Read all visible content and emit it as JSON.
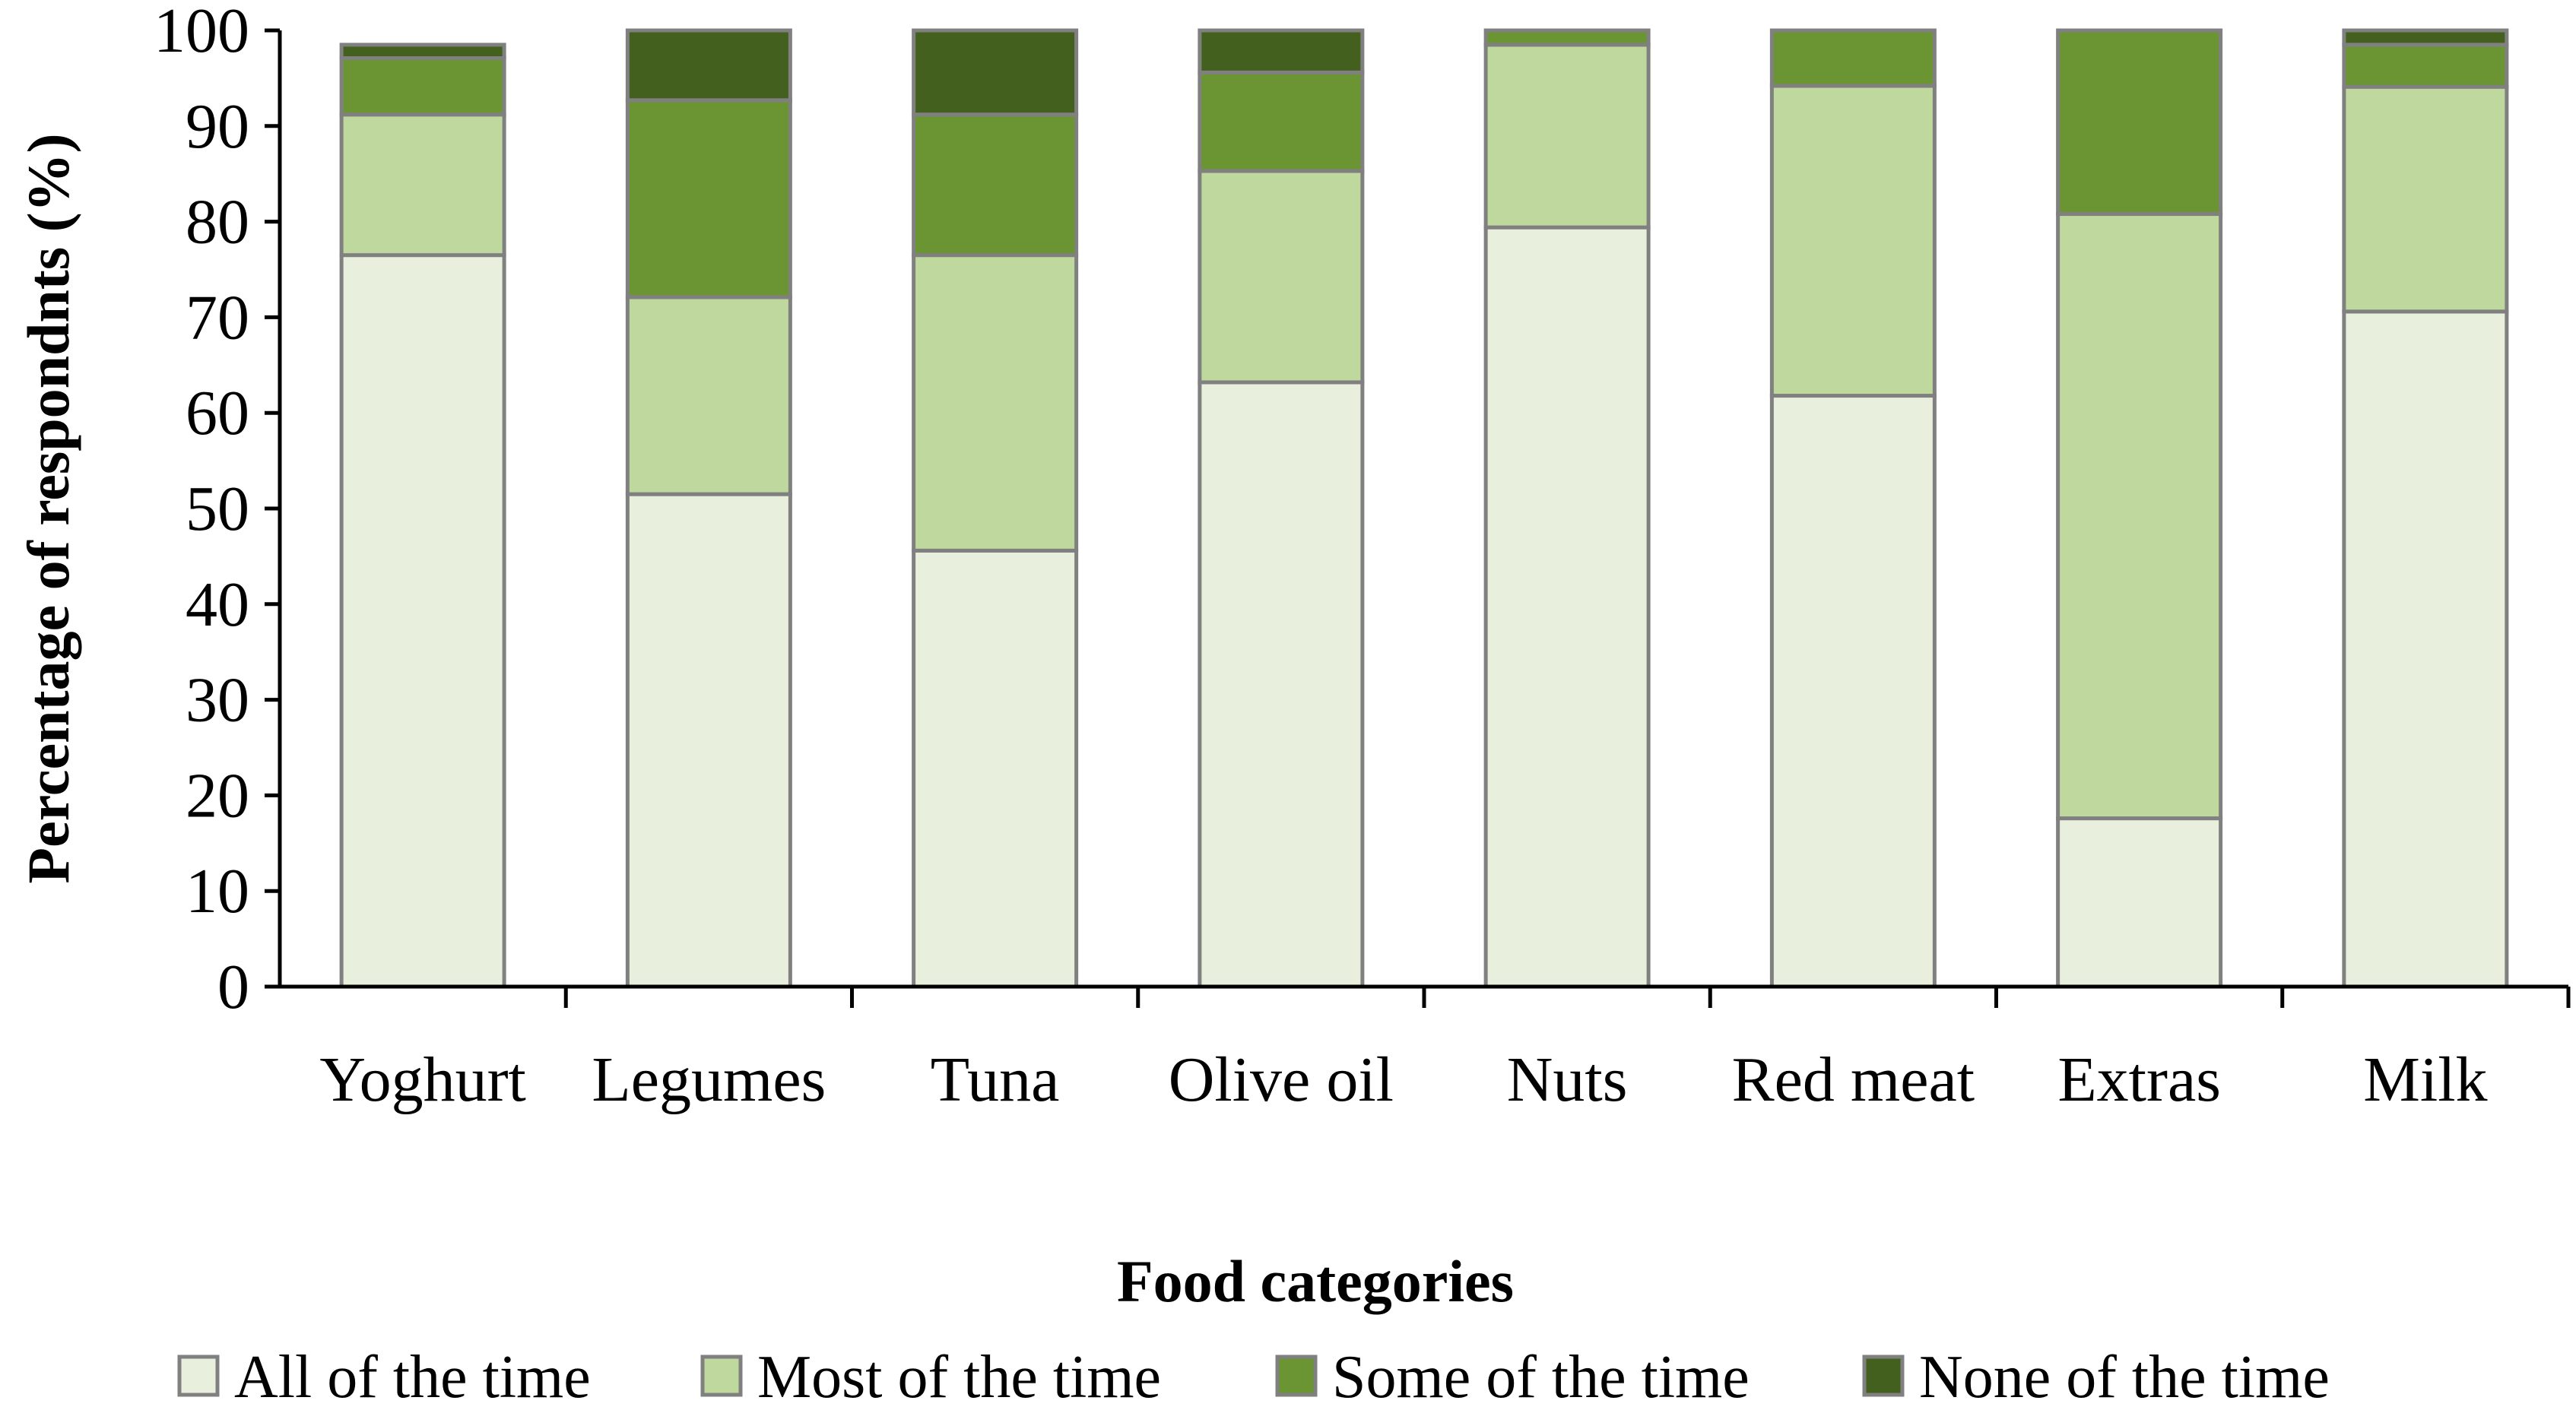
{
  "chart_data": {
    "type": "bar",
    "stacked": true,
    "title": "",
    "xlabel": "Food categories",
    "ylabel": "Percentage of respondnts (%)",
    "ylim": [
      0,
      100
    ],
    "yticks": [
      0,
      10,
      20,
      30,
      40,
      50,
      60,
      70,
      80,
      90,
      100
    ],
    "grid": false,
    "legend_position": "bottom",
    "categories": [
      "Yoghurt",
      "Legumes",
      "Tuna",
      "Olive oil",
      "Nuts",
      "Red meat",
      "Extras",
      "Milk"
    ],
    "series": [
      {
        "name": "All of the time",
        "color": "#e8efdc",
        "values": [
          76.5,
          51.5,
          45.6,
          63.2,
          79.4,
          61.8,
          17.6,
          70.6
        ]
      },
      {
        "name": "Most of the time",
        "color": "#bfd89e",
        "values": [
          14.7,
          20.6,
          30.9,
          22.1,
          19.1,
          32.4,
          63.2,
          23.5
        ]
      },
      {
        "name": "Some of the time",
        "color": "#6a9532",
        "values": [
          5.9,
          20.6,
          14.7,
          10.3,
          1.5,
          5.8,
          19.2,
          4.4
        ]
      },
      {
        "name": "None of the time",
        "color": "#43601f",
        "values": [
          1.4,
          7.3,
          8.8,
          4.4,
          0,
          0,
          0,
          1.5
        ]
      }
    ]
  }
}
